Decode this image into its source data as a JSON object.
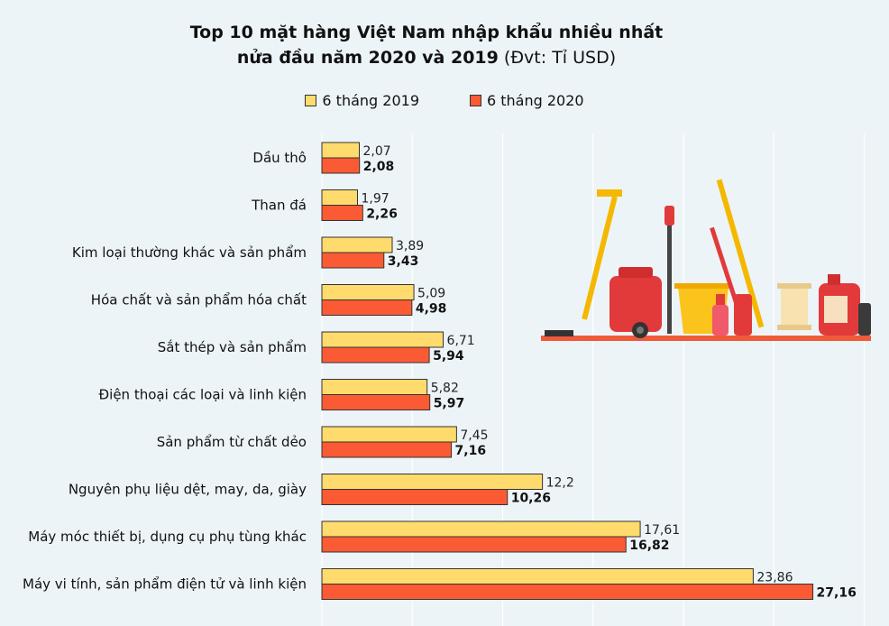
{
  "title": {
    "line1": "Top 10 mặt hàng Việt Nam nhập khẩu nhiều nhất",
    "line2_bold": "nửa đầu năm 2020 và 2019",
    "line2_unit": "(Đvt: Tỉ USD)"
  },
  "colors": {
    "y2019": "#fedb6c",
    "y2020": "#fb5b34",
    "grid": "#ffffff",
    "border": "#333333"
  },
  "chart_data": {
    "type": "bar",
    "orientation": "horizontal",
    "title": "Top 10 mặt hàng Việt Nam nhập khẩu nhiều nhất nửa đầu năm 2020 và 2019 (Đvt: Tỉ USD)",
    "categories": [
      "Dầu thô",
      "Than đá",
      "Kim loại thường khác và sản phẩm",
      "Hóa chất và sản phẩm hóa chất",
      "Sắt thép và sản phẩm",
      "Điện thoại các loại và linh kiện",
      "Sản phẩm từ chất dẻo",
      "Nguyên phụ liệu dệt, may, da, giày",
      "Máy móc thiết bị, dụng cụ phụ tùng khác",
      "Máy vi tính, sản phẩm điện tử và linh kiện"
    ],
    "series": [
      {
        "name": "6 tháng 2019",
        "values": [
          2.07,
          1.97,
          3.89,
          5.09,
          6.71,
          5.82,
          7.45,
          12.2,
          17.61,
          23.86
        ],
        "labels": [
          "2,07",
          "1,97",
          "3,89",
          "5,09",
          "6,71",
          "5,82",
          "7,45",
          "12,2",
          "17,61",
          "23,86"
        ]
      },
      {
        "name": "6 tháng 2020",
        "values": [
          2.08,
          2.26,
          3.43,
          4.98,
          5.94,
          5.97,
          7.16,
          10.26,
          16.82,
          27.16
        ],
        "labels": [
          "2,08",
          "2,26",
          "3,43",
          "4,98",
          "5,94",
          "5,97",
          "7,16",
          "10,26",
          "16,82",
          "27,16"
        ]
      }
    ],
    "xlim": [
      0,
      30
    ],
    "grid": true,
    "legend": "top"
  }
}
